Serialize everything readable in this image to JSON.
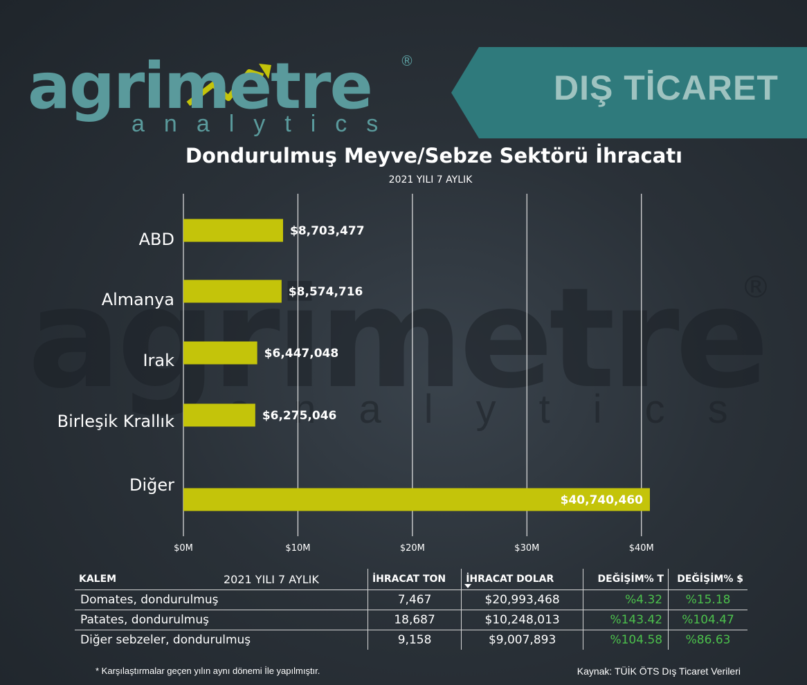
{
  "brand": {
    "logo_word": "agrimetre",
    "logo_sub": "analytics",
    "registered": "®",
    "teal": "#5a9a9c",
    "banner_text": "DIŞ TİCARET",
    "banner_color": "#2f7a7c"
  },
  "chart_data": {
    "type": "bar",
    "orientation": "horizontal",
    "title": "Dondurulmuş Meyve/Sebze Sektörü  İhracatı",
    "subtitle": "2021 YILI 7 AYLIK",
    "categories": [
      "ABD",
      "Almanya",
      "Irak",
      "Birleşik Krallık",
      "Diğer"
    ],
    "values": [
      8703477,
      8574716,
      6447048,
      6275046,
      40740460
    ],
    "value_labels": [
      "$8,703,477",
      "$8,574,716",
      "$6,447,048",
      "$6,275,046",
      "$40,740,460"
    ],
    "x_ticks": [
      0,
      10000000,
      20000000,
      30000000,
      40000000
    ],
    "x_tick_labels": [
      "$0M",
      "$10M",
      "$20M",
      "$30M",
      "$40M"
    ],
    "xlim": [
      0,
      40740460
    ],
    "grid": "vertical",
    "bar_color": "#c4c40a"
  },
  "table": {
    "period": "2021 YILI 7 AYLIK",
    "headers": [
      "KALEM",
      "İHRACAT TON",
      "İHRACAT DOLAR",
      "DEĞİŞİM% T",
      "DEĞİŞİM% $"
    ],
    "rows": [
      [
        "Domates, dondurulmuş",
        "7,467",
        "$20,993,468",
        "%4.32",
        "%15.18"
      ],
      [
        "Patates, dondurulmuş",
        "18,687",
        "$10,248,013",
        "%143.42",
        "%104.47"
      ],
      [
        "Diğer sebzeler, dondurulmuş",
        "9,158",
        "$9,007,893",
        "%104.58",
        "%86.63"
      ]
    ],
    "positive_color": "#4cc14c"
  },
  "footer": {
    "note": "* Karşılaştırmalar geçen yılın aynı dönemi İle yapılmıştır.",
    "source": "Kaynak: TÜİK ÖTS Dış Ticaret Verileri"
  }
}
